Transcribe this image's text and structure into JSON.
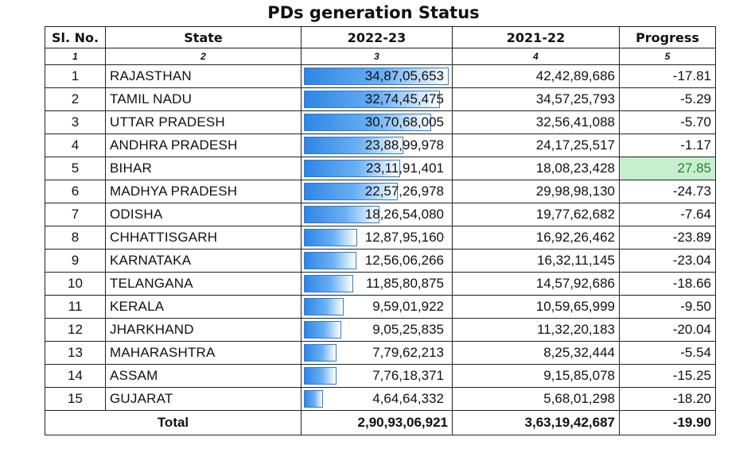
{
  "title": "PDs generation Status",
  "columns": [
    "Sl. No.",
    "State",
    "2022-23",
    "2021-22",
    "Progress"
  ],
  "column_numbers": [
    "1",
    "2",
    "3",
    "4",
    "5"
  ],
  "rows": [
    {
      "sl": "1",
      "state": "RAJASTHAN",
      "y2022": "34,87,05,653",
      "y2021": "42,42,89,686",
      "progress": "-17.81",
      "bar": 1.0
    },
    {
      "sl": "2",
      "state": "TAMIL NADU",
      "y2022": "32,74,45,475",
      "y2021": "34,57,25,793",
      "progress": "-5.29",
      "bar": 0.939
    },
    {
      "sl": "3",
      "state": "UTTAR PRADESH",
      "y2022": "30,70,68,005",
      "y2021": "32,56,41,088",
      "progress": "-5.70",
      "bar": 0.881
    },
    {
      "sl": "4",
      "state": "ANDHRA PRADESH",
      "y2022": "23,88,99,978",
      "y2021": "24,17,25,517",
      "progress": "-1.17",
      "bar": 0.685
    },
    {
      "sl": "5",
      "state": "BIHAR",
      "y2022": "23,11,91,401",
      "y2021": "18,08,23,428",
      "progress": "27.85",
      "bar": 0.663
    },
    {
      "sl": "6",
      "state": "MADHYA PRADESH",
      "y2022": "22,57,26,978",
      "y2021": "29,98,98,130",
      "progress": "-24.73",
      "bar": 0.647
    },
    {
      "sl": "7",
      "state": "ODISHA",
      "y2022": "18,26,54,080",
      "y2021": "19,77,62,682",
      "progress": "-7.64",
      "bar": 0.524
    },
    {
      "sl": "8",
      "state": "CHHATTISGARH",
      "y2022": "12,87,95,160",
      "y2021": "16,92,26,462",
      "progress": "-23.89",
      "bar": 0.369
    },
    {
      "sl": "9",
      "state": "KARNATAKA",
      "y2022": "12,56,06,266",
      "y2021": "16,32,11,145",
      "progress": "-23.04",
      "bar": 0.36
    },
    {
      "sl": "10",
      "state": "TELANGANA",
      "y2022": "11,85,80,875",
      "y2021": "14,57,92,686",
      "progress": "-18.66",
      "bar": 0.34
    },
    {
      "sl": "11",
      "state": "KERALA",
      "y2022": "9,59,01,922",
      "y2021": "10,59,65,999",
      "progress": "-9.50",
      "bar": 0.275
    },
    {
      "sl": "12",
      "state": "JHARKHAND",
      "y2022": "9,05,25,835",
      "y2021": "11,32,20,183",
      "progress": "-20.04",
      "bar": 0.26
    },
    {
      "sl": "13",
      "state": "MAHARASHTRA",
      "y2022": "7,79,62,213",
      "y2021": "8,25,32,444",
      "progress": "-5.54",
      "bar": 0.224
    },
    {
      "sl": "14",
      "state": "ASSAM",
      "y2022": "7,76,18,371",
      "y2021": "9,15,85,078",
      "progress": "-15.25",
      "bar": 0.223
    },
    {
      "sl": "15",
      "state": "GUJARAT",
      "y2022": "4,64,64,332",
      "y2021": "5,68,01,298",
      "progress": "-18.20",
      "bar": 0.133
    }
  ],
  "total": {
    "label": "Total",
    "y2022": "2,90,93,06,921",
    "y2021": "3,63,19,42,687",
    "progress": "-19.90"
  },
  "colors": {
    "bar": "#2f86e6",
    "positive_bg": "#c6efce",
    "positive_text": "#2e7d32"
  }
}
